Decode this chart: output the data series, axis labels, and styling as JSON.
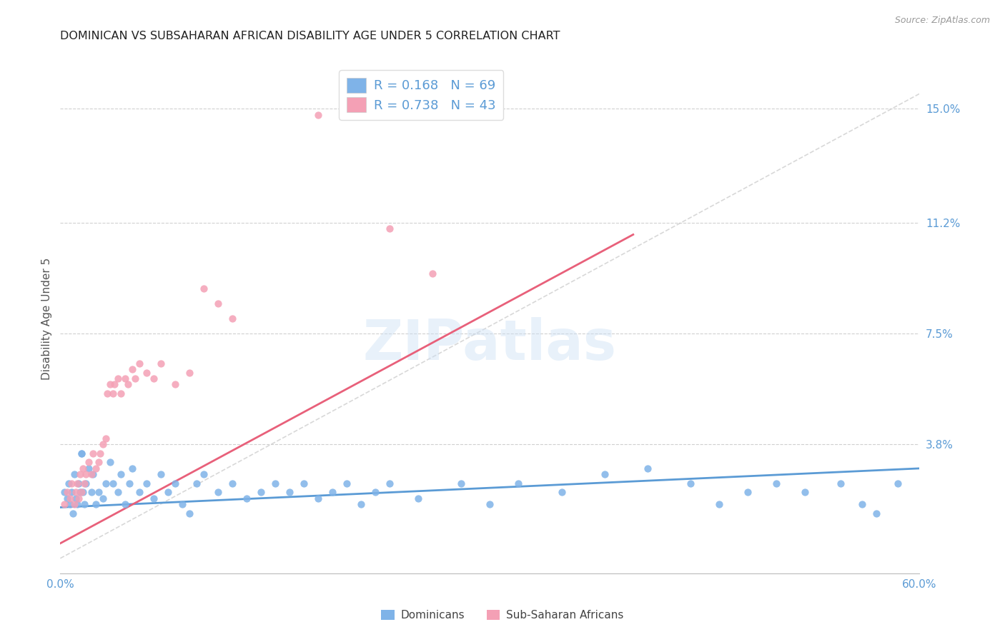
{
  "title": "DOMINICAN VS SUBSAHARAN AFRICAN DISABILITY AGE UNDER 5 CORRELATION CHART",
  "source": "Source: ZipAtlas.com",
  "ylabel": "Disability Age Under 5",
  "xlim": [
    0.0,
    0.6
  ],
  "ylim": [
    -0.005,
    0.165
  ],
  "xticks": [
    0.0,
    0.1,
    0.2,
    0.3,
    0.4,
    0.5,
    0.6
  ],
  "xticklabels": [
    "0.0%",
    "",
    "",
    "",
    "",
    "",
    "60.0%"
  ],
  "yticks_right": [
    0.038,
    0.075,
    0.112,
    0.15
  ],
  "yticklabels_right": [
    "3.8%",
    "7.5%",
    "11.2%",
    "15.0%"
  ],
  "dominicans_color": "#7fb3e8",
  "subsaharan_color": "#f4a0b5",
  "dominicans_line_color": "#5b9bd5",
  "subsaharan_line_color": "#e8607a",
  "dominicans_R": 0.168,
  "dominicans_N": 69,
  "subsaharan_R": 0.738,
  "subsaharan_N": 43,
  "legend_label_1": "Dominicans",
  "legend_label_2": "Sub-Saharan Africans",
  "watermark": "ZIPatlas",
  "blue_text": "#5b9bd5",
  "grid_color": "#d0d0d0",
  "ref_line_color": "#c8c8c8",
  "dominicans_scatter": [
    [
      0.003,
      0.022
    ],
    [
      0.005,
      0.02
    ],
    [
      0.006,
      0.025
    ],
    [
      0.007,
      0.018
    ],
    [
      0.008,
      0.022
    ],
    [
      0.009,
      0.015
    ],
    [
      0.01,
      0.028
    ],
    [
      0.011,
      0.02
    ],
    [
      0.012,
      0.018
    ],
    [
      0.013,
      0.025
    ],
    [
      0.014,
      0.022
    ],
    [
      0.015,
      0.035
    ],
    [
      0.016,
      0.022
    ],
    [
      0.017,
      0.018
    ],
    [
      0.018,
      0.025
    ],
    [
      0.02,
      0.03
    ],
    [
      0.022,
      0.022
    ],
    [
      0.023,
      0.028
    ],
    [
      0.025,
      0.018
    ],
    [
      0.027,
      0.022
    ],
    [
      0.03,
      0.02
    ],
    [
      0.032,
      0.025
    ],
    [
      0.035,
      0.032
    ],
    [
      0.037,
      0.025
    ],
    [
      0.04,
      0.022
    ],
    [
      0.042,
      0.028
    ],
    [
      0.045,
      0.018
    ],
    [
      0.048,
      0.025
    ],
    [
      0.05,
      0.03
    ],
    [
      0.055,
      0.022
    ],
    [
      0.06,
      0.025
    ],
    [
      0.065,
      0.02
    ],
    [
      0.07,
      0.028
    ],
    [
      0.075,
      0.022
    ],
    [
      0.08,
      0.025
    ],
    [
      0.085,
      0.018
    ],
    [
      0.09,
      0.015
    ],
    [
      0.095,
      0.025
    ],
    [
      0.1,
      0.028
    ],
    [
      0.11,
      0.022
    ],
    [
      0.12,
      0.025
    ],
    [
      0.13,
      0.02
    ],
    [
      0.14,
      0.022
    ],
    [
      0.15,
      0.025
    ],
    [
      0.16,
      0.022
    ],
    [
      0.17,
      0.025
    ],
    [
      0.18,
      0.02
    ],
    [
      0.19,
      0.022
    ],
    [
      0.2,
      0.025
    ],
    [
      0.21,
      0.018
    ],
    [
      0.22,
      0.022
    ],
    [
      0.23,
      0.025
    ],
    [
      0.25,
      0.02
    ],
    [
      0.28,
      0.025
    ],
    [
      0.3,
      0.018
    ],
    [
      0.32,
      0.025
    ],
    [
      0.35,
      0.022
    ],
    [
      0.38,
      0.028
    ],
    [
      0.41,
      0.03
    ],
    [
      0.44,
      0.025
    ],
    [
      0.46,
      0.018
    ],
    [
      0.48,
      0.022
    ],
    [
      0.5,
      0.025
    ],
    [
      0.52,
      0.022
    ],
    [
      0.545,
      0.025
    ],
    [
      0.56,
      0.018
    ],
    [
      0.57,
      0.015
    ],
    [
      0.585,
      0.025
    ],
    [
      0.015,
      0.035
    ]
  ],
  "subsaharan_scatter": [
    [
      0.003,
      0.018
    ],
    [
      0.005,
      0.022
    ],
    [
      0.007,
      0.02
    ],
    [
      0.008,
      0.025
    ],
    [
      0.01,
      0.018
    ],
    [
      0.011,
      0.022
    ],
    [
      0.012,
      0.025
    ],
    [
      0.013,
      0.02
    ],
    [
      0.014,
      0.028
    ],
    [
      0.015,
      0.022
    ],
    [
      0.016,
      0.03
    ],
    [
      0.017,
      0.025
    ],
    [
      0.018,
      0.028
    ],
    [
      0.02,
      0.032
    ],
    [
      0.022,
      0.028
    ],
    [
      0.023,
      0.035
    ],
    [
      0.025,
      0.03
    ],
    [
      0.027,
      0.032
    ],
    [
      0.028,
      0.035
    ],
    [
      0.03,
      0.038
    ],
    [
      0.032,
      0.04
    ],
    [
      0.033,
      0.055
    ],
    [
      0.035,
      0.058
    ],
    [
      0.037,
      0.055
    ],
    [
      0.038,
      0.058
    ],
    [
      0.04,
      0.06
    ],
    [
      0.042,
      0.055
    ],
    [
      0.045,
      0.06
    ],
    [
      0.047,
      0.058
    ],
    [
      0.05,
      0.063
    ],
    [
      0.052,
      0.06
    ],
    [
      0.055,
      0.065
    ],
    [
      0.06,
      0.062
    ],
    [
      0.065,
      0.06
    ],
    [
      0.07,
      0.065
    ],
    [
      0.08,
      0.058
    ],
    [
      0.09,
      0.062
    ],
    [
      0.1,
      0.09
    ],
    [
      0.11,
      0.085
    ],
    [
      0.12,
      0.08
    ],
    [
      0.18,
      0.148
    ],
    [
      0.23,
      0.11
    ],
    [
      0.26,
      0.095
    ]
  ]
}
